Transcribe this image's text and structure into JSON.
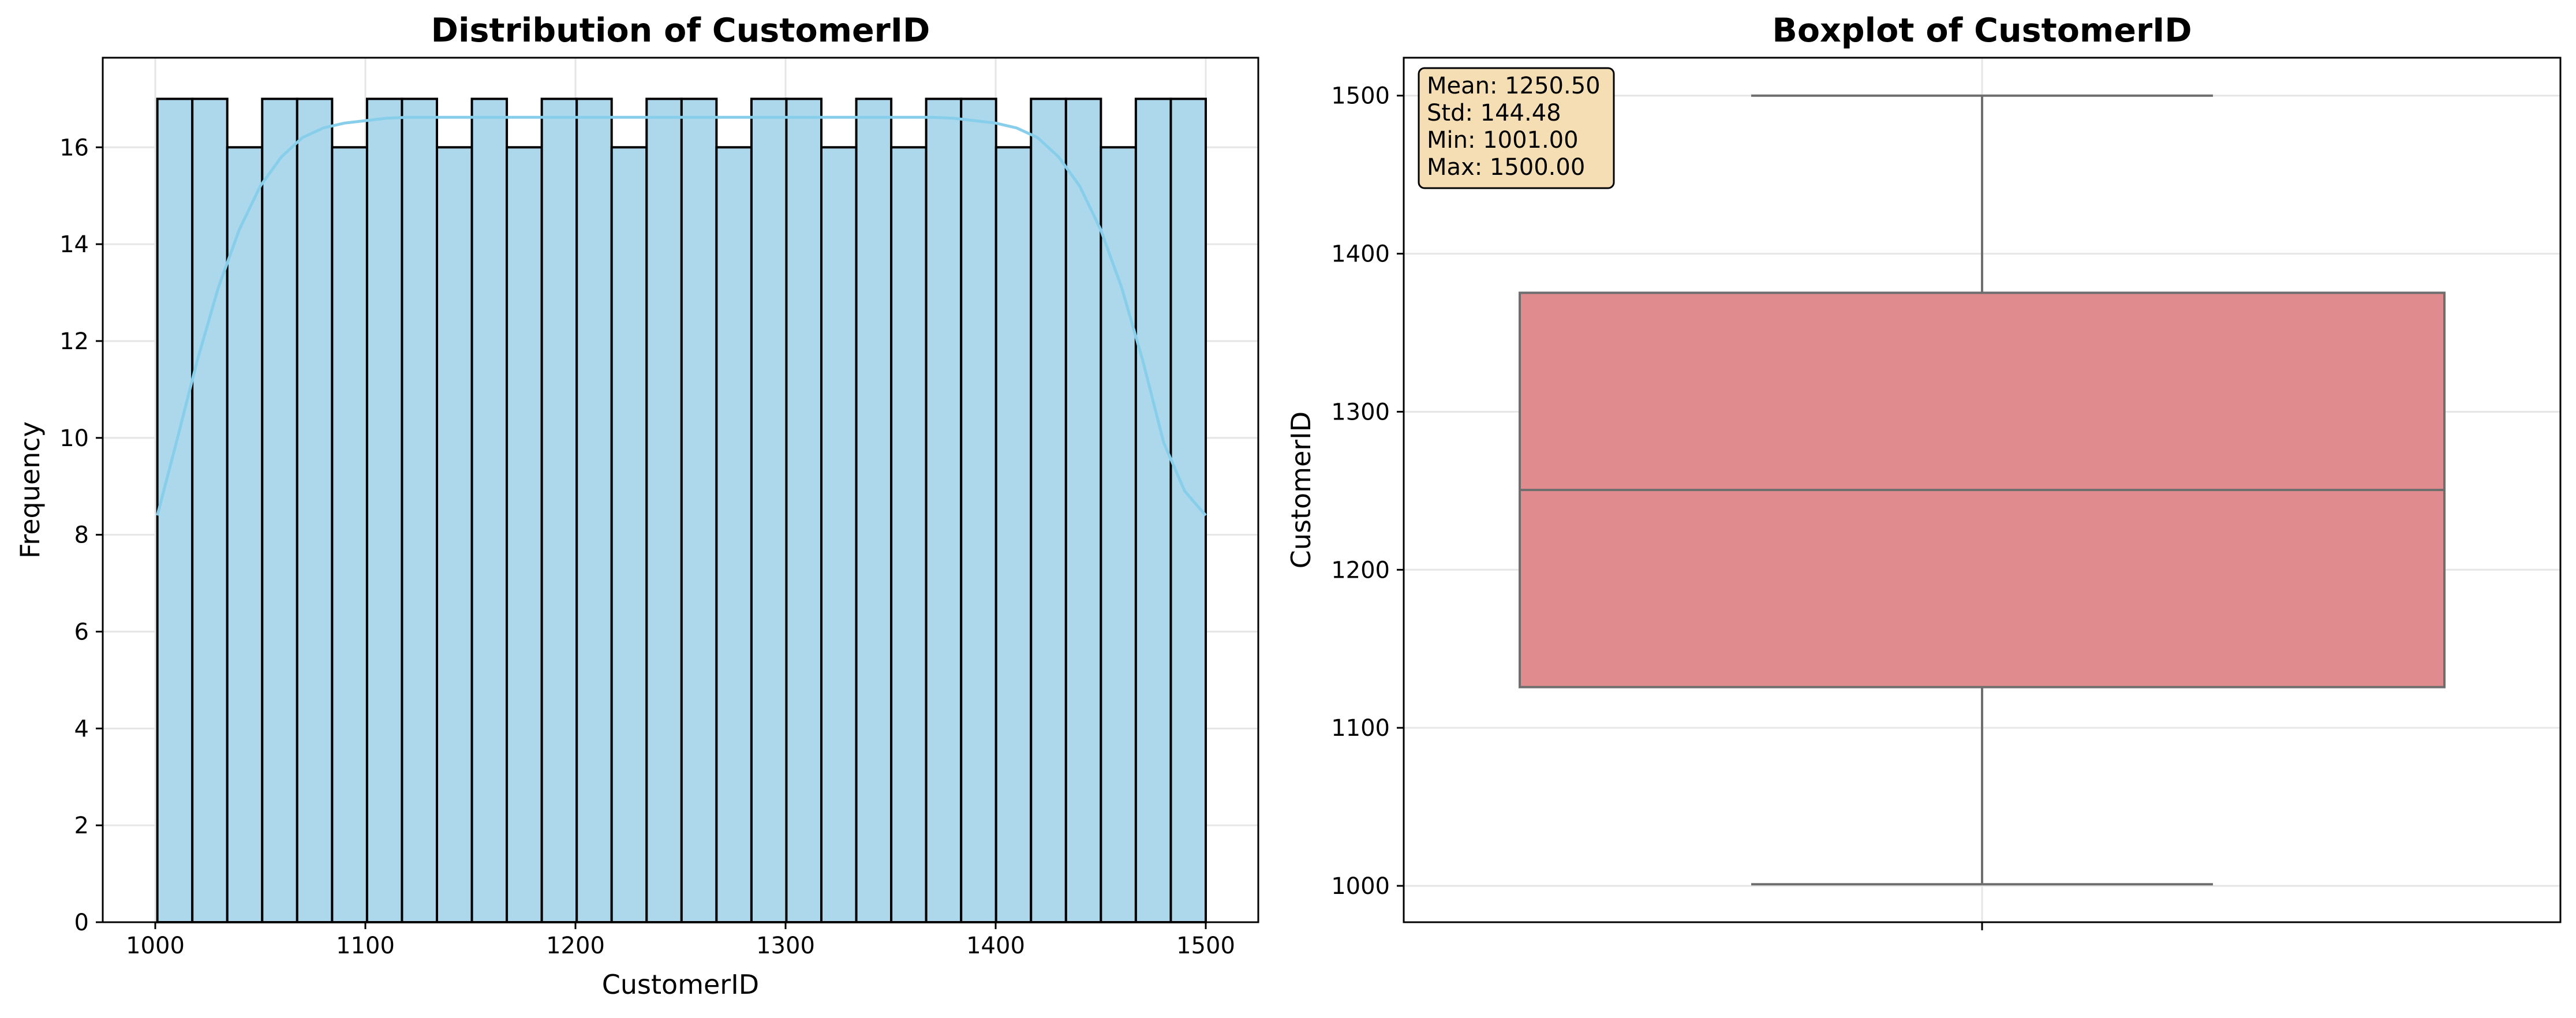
{
  "chart_data": [
    {
      "type": "bar",
      "title": "Distribution of CustomerID",
      "xlabel": "CustomerID",
      "ylabel": "Frequency",
      "xlim": [
        975,
        1525
      ],
      "ylim": [
        0,
        17.85
      ],
      "xticks": [
        1000,
        1100,
        1200,
        1300,
        1400,
        1500
      ],
      "yticks": [
        0,
        2,
        4,
        6,
        8,
        10,
        12,
        14,
        16
      ],
      "grid": true,
      "bin_edges": [
        1001,
        1017.63,
        1034.27,
        1050.9,
        1067.53,
        1084.17,
        1100.8,
        1117.43,
        1134.07,
        1150.7,
        1167.33,
        1183.97,
        1200.6,
        1217.23,
        1233.87,
        1250.5,
        1267.13,
        1283.77,
        1300.4,
        1317.03,
        1333.67,
        1350.3,
        1366.93,
        1383.57,
        1400.2,
        1416.83,
        1433.47,
        1450.1,
        1466.73,
        1483.37,
        1500
      ],
      "values": [
        17,
        17,
        16,
        17,
        17,
        16,
        17,
        17,
        16,
        17,
        16,
        17,
        17,
        16,
        17,
        17,
        16,
        17,
        17,
        16,
        17,
        16,
        17,
        17,
        16,
        17,
        17,
        16,
        17,
        17
      ],
      "bar_color": "#add8ec",
      "kde_color": "#87ceeb",
      "kde_curve": {
        "x": [
          1001,
          1010,
          1020,
          1030,
          1040,
          1050,
          1060,
          1070,
          1080,
          1090,
          1100,
          1110,
          1120,
          1130,
          1150,
          1200,
          1250,
          1300,
          1350,
          1370,
          1380,
          1390,
          1400,
          1410,
          1420,
          1430,
          1440,
          1450,
          1460,
          1470,
          1480,
          1490,
          1500
        ],
        "y": [
          8.4,
          9.9,
          11.6,
          13.1,
          14.3,
          15.2,
          15.8,
          16.2,
          16.4,
          16.5,
          16.55,
          16.6,
          16.62,
          16.62,
          16.62,
          16.62,
          16.62,
          16.62,
          16.62,
          16.62,
          16.6,
          16.55,
          16.5,
          16.4,
          16.2,
          15.8,
          15.2,
          14.3,
          13.1,
          11.6,
          9.9,
          8.9,
          8.4
        ]
      }
    },
    {
      "type": "box",
      "title": "Boxplot of CustomerID",
      "ylabel": "CustomerID",
      "ylim": [
        977,
        1524
      ],
      "yticks": [
        1000,
        1100,
        1200,
        1300,
        1400,
        1500
      ],
      "grid": true,
      "min": 1001,
      "q1": 1125.75,
      "median": 1250.5,
      "q3": 1375.25,
      "max": 1500,
      "box_color": "#e08c8e",
      "stats_box": {
        "lines": [
          "Mean: 1250.50",
          "Std: 144.48",
          "Min: 1001.00",
          "Max: 1500.00"
        ],
        "position": "top-left",
        "facecolor": "#f5deb3"
      }
    }
  ]
}
